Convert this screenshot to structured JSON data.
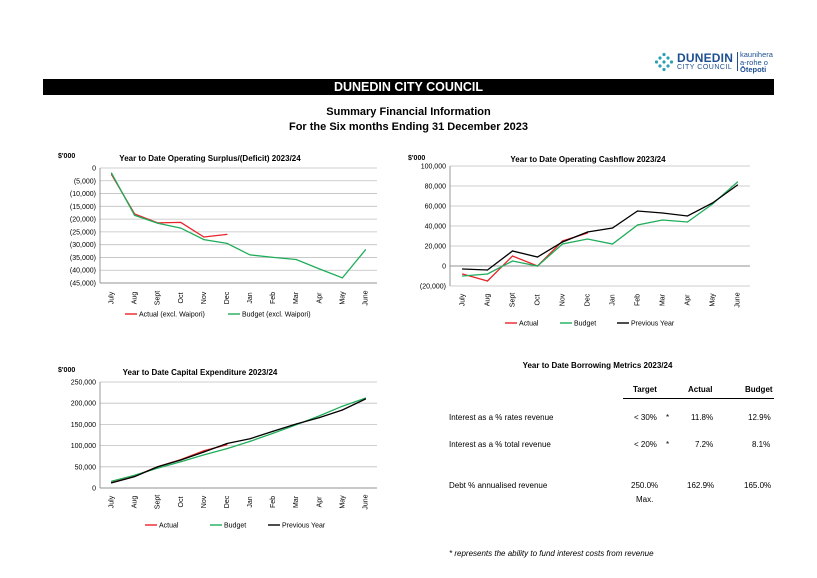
{
  "header": {
    "logo_name_line1": "DUNEDIN",
    "logo_name_line2": "CITY COUNCIL",
    "logo_maori_line1": "kaunihera",
    "logo_maori_line2": "a-rohe o",
    "logo_maori_line3": "Ōtepoti",
    "banner": "DUNEDIN CITY COUNCIL",
    "title": "Summary Financial Information",
    "subtitle": "For the Six months Ending 31 December 2023"
  },
  "colors": {
    "actual": "#e8232a",
    "budget": "#1fad5a",
    "previous": "#000000",
    "grid": "#bfbfbf",
    "logo": "#1d4f91"
  },
  "chart_data": [
    {
      "type": "line",
      "title": "Year to Date Operating Surplus/(Deficit) 2023/24",
      "unit_label": "$'000",
      "categories": [
        "July",
        "Aug",
        "Sept",
        "Oct",
        "Nov",
        "Dec",
        "Jan",
        "Feb",
        "Mar",
        "Apr",
        "May",
        "June"
      ],
      "ylim": [
        -45000,
        0
      ],
      "ytick_labels": [
        "0",
        "(5,000)",
        "(10,000)",
        "(15,000)",
        "(20,000)",
        "(25,000)",
        "(30,000)",
        "(35,000)",
        "(40,000)",
        "(45,000)"
      ],
      "series": [
        {
          "name": "Actual (excl. Waipori)",
          "color": "#e8232a",
          "values": [
            -2500,
            -18000,
            -21500,
            -21300,
            -27000,
            -26000,
            null,
            null,
            null,
            null,
            null,
            null
          ]
        },
        {
          "name": "Budget (excl. Waipori)",
          "color": "#1fad5a",
          "values": [
            -2000,
            -18500,
            -21600,
            -23500,
            -28000,
            -29500,
            -34000,
            -35000,
            -35800,
            -39500,
            -43000,
            -32000
          ]
        }
      ],
      "grid": true,
      "legend": "bottom"
    },
    {
      "type": "line",
      "title": "Year to Date Operating Cashflow 2023/24",
      "unit_label": "$'000",
      "categories": [
        "July",
        "Aug",
        "Sept",
        "Oct",
        "Nov",
        "Dec",
        "Jan",
        "Feb",
        "Mar",
        "Apr",
        "May",
        "June"
      ],
      "ylim": [
        -20000,
        100000
      ],
      "ytick_labels": [
        "100,000",
        "80,000",
        "60,000",
        "40,000",
        "20,000",
        "0",
        "(20,000)"
      ],
      "series": [
        {
          "name": "Actual",
          "color": "#e8232a",
          "values": [
            -8000,
            -15000,
            10000,
            0,
            25000,
            33000,
            null,
            null,
            null,
            null,
            null,
            null
          ]
        },
        {
          "name": "Budget",
          "color": "#1fad5a",
          "values": [
            -10000,
            -8000,
            5000,
            0,
            22000,
            27000,
            22000,
            41000,
            46000,
            44000,
            62000,
            84000
          ]
        },
        {
          "name": "Previous Year",
          "color": "#000000",
          "values": [
            -3000,
            -4000,
            15000,
            9000,
            24000,
            34000,
            38000,
            55000,
            53000,
            50000,
            63000,
            81000
          ]
        }
      ],
      "grid": true,
      "legend": "bottom"
    },
    {
      "type": "line",
      "title": "Year to Date Capital Expenditure 2023/24",
      "unit_label": "$'000",
      "categories": [
        "July",
        "Aug",
        "Sept",
        "Oct",
        "Nov",
        "Dec",
        "Jan",
        "Feb",
        "Mar",
        "Apr",
        "May",
        "June"
      ],
      "ylim": [
        0,
        250000
      ],
      "ytick_labels": [
        "250,000",
        "200,000",
        "150,000",
        "100,000",
        "50,000",
        "0"
      ],
      "series": [
        {
          "name": "Actual",
          "color": "#e8232a",
          "values": [
            13000,
            28000,
            50000,
            67000,
            88000,
            102000,
            null,
            null,
            null,
            null,
            null,
            null
          ]
        },
        {
          "name": "Budget",
          "color": "#1fad5a",
          "values": [
            16000,
            30000,
            47000,
            62000,
            78000,
            93000,
            110000,
            129000,
            149000,
            170000,
            193000,
            212000
          ]
        },
        {
          "name": "Previous Year",
          "color": "#000000",
          "values": [
            12000,
            27000,
            50000,
            66000,
            85000,
            105000,
            116000,
            134000,
            151000,
            166000,
            184000,
            210000
          ]
        }
      ],
      "grid": true,
      "legend": "bottom"
    }
  ],
  "borrowing": {
    "title": "Year to Date Borrowing Metrics 2023/24",
    "headers": {
      "target": "Target",
      "actual": "Actual",
      "budget": "Budget"
    },
    "rows": [
      {
        "label": "Interest as a % rates revenue",
        "target": "< 30%",
        "star": "*",
        "actual": "11.8%",
        "budget": "12.9%",
        "note": ""
      },
      {
        "label": "Interest as a % total revenue",
        "target": "< 20%",
        "star": "*",
        "actual": "7.2%",
        "budget": "8.1%",
        "note": ""
      },
      {
        "label": "Debt % annualised revenue",
        "target": "250.0%",
        "star": "",
        "actual": "162.9%",
        "budget": "165.0%",
        "note": "Max."
      }
    ],
    "footnote": "* represents the ability to fund interest costs from revenue"
  }
}
